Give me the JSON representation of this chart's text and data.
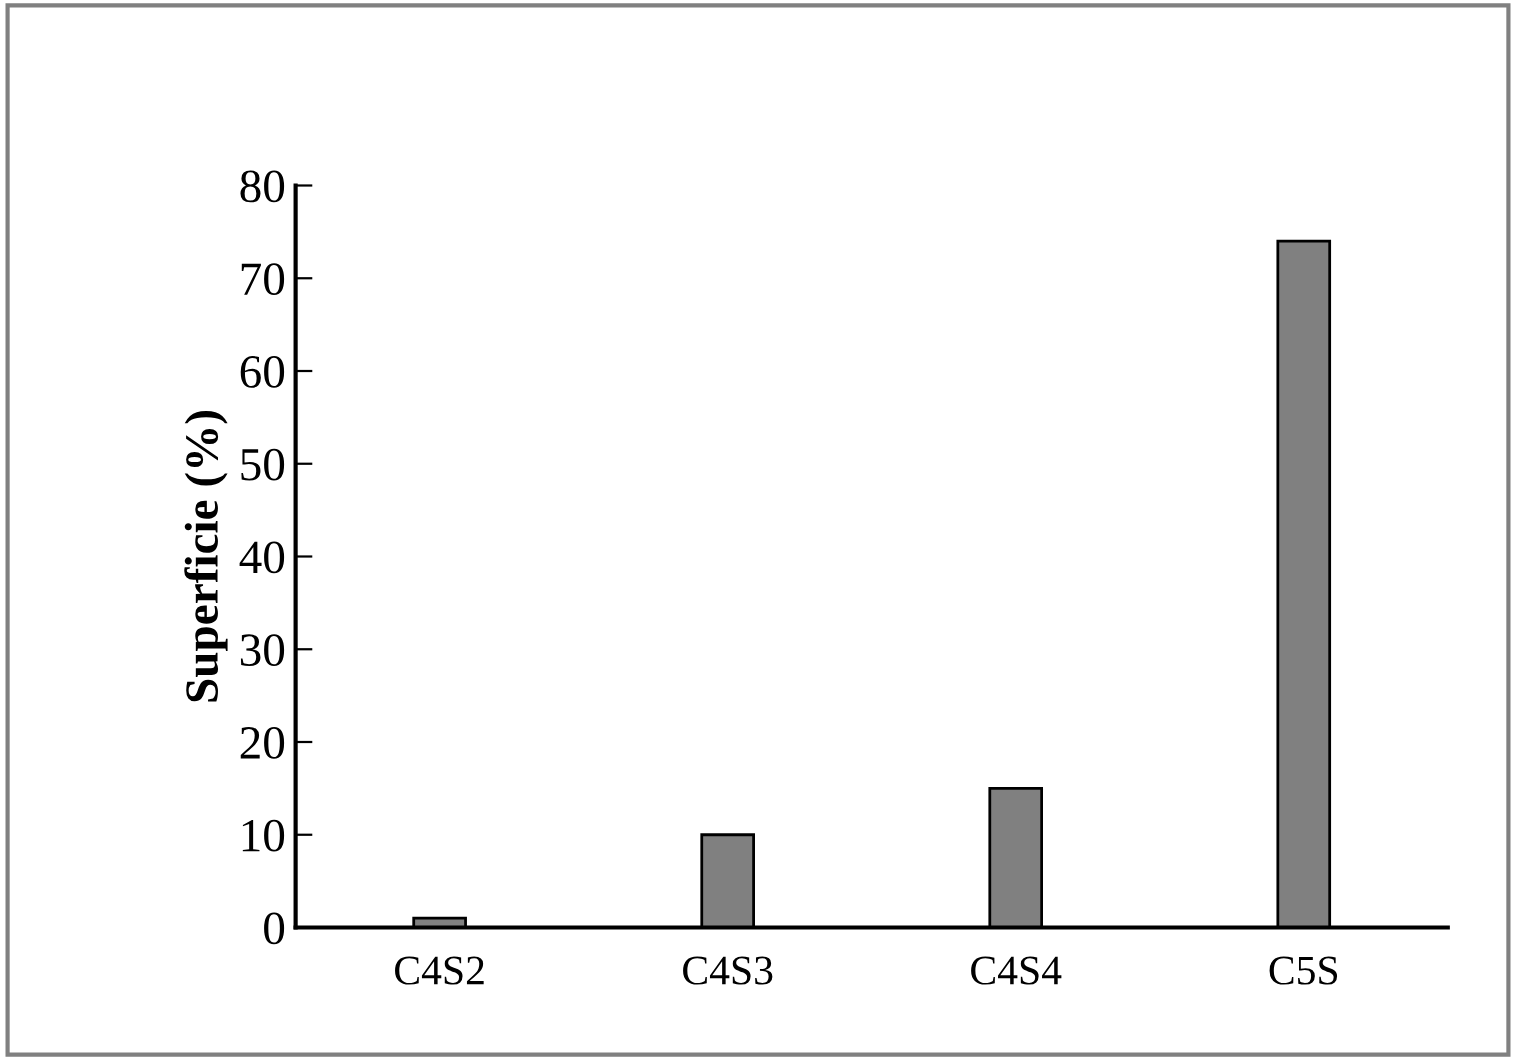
{
  "chart_data": {
    "type": "bar",
    "ylabel": "Superficie (%)",
    "categories": [
      "C4S2",
      "C4S3",
      "C4S4",
      "C5S"
    ],
    "values": [
      1,
      10,
      15,
      74
    ],
    "color": "#808080",
    "ylim": [
      0,
      80
    ],
    "yticks": [
      0,
      10,
      20,
      30,
      40,
      50,
      60,
      70,
      80
    ],
    "grid": false
  }
}
